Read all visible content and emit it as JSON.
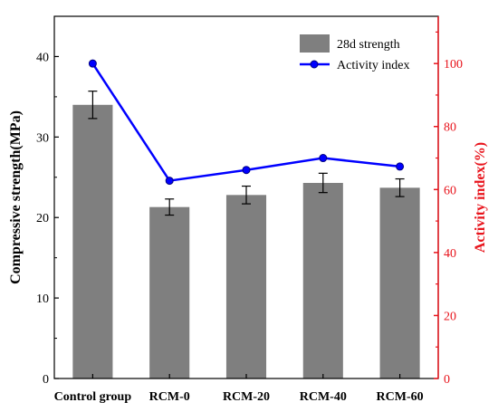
{
  "chart_data": {
    "type": "bar",
    "categories": [
      "Control group",
      "RCM-0",
      "RCM-20",
      "RCM-40",
      "RCM-60"
    ],
    "series": [
      {
        "name": "28d strength",
        "type": "bar",
        "axis": "left",
        "values": [
          34.0,
          21.3,
          22.8,
          24.3,
          23.7
        ],
        "error": [
          1.7,
          1.0,
          1.1,
          1.2,
          1.1
        ],
        "color": "#7f7f7f"
      },
      {
        "name": "Activity index",
        "type": "line",
        "axis": "right",
        "values": [
          100.0,
          62.8,
          66.2,
          70.0,
          67.3
        ],
        "color": "#0000ff"
      }
    ],
    "ylabel": "Compressive strength(MPa)",
    "y2label": "Activity index(%)",
    "ylim": [
      0,
      45
    ],
    "y2lim": [
      0,
      115
    ],
    "yticks": [
      0,
      10,
      20,
      30,
      40
    ],
    "y2ticks": [
      0,
      20,
      40,
      60,
      80,
      100
    ],
    "right_axis_color": "#e8141c",
    "legend_position": "top-right",
    "grid": false
  }
}
